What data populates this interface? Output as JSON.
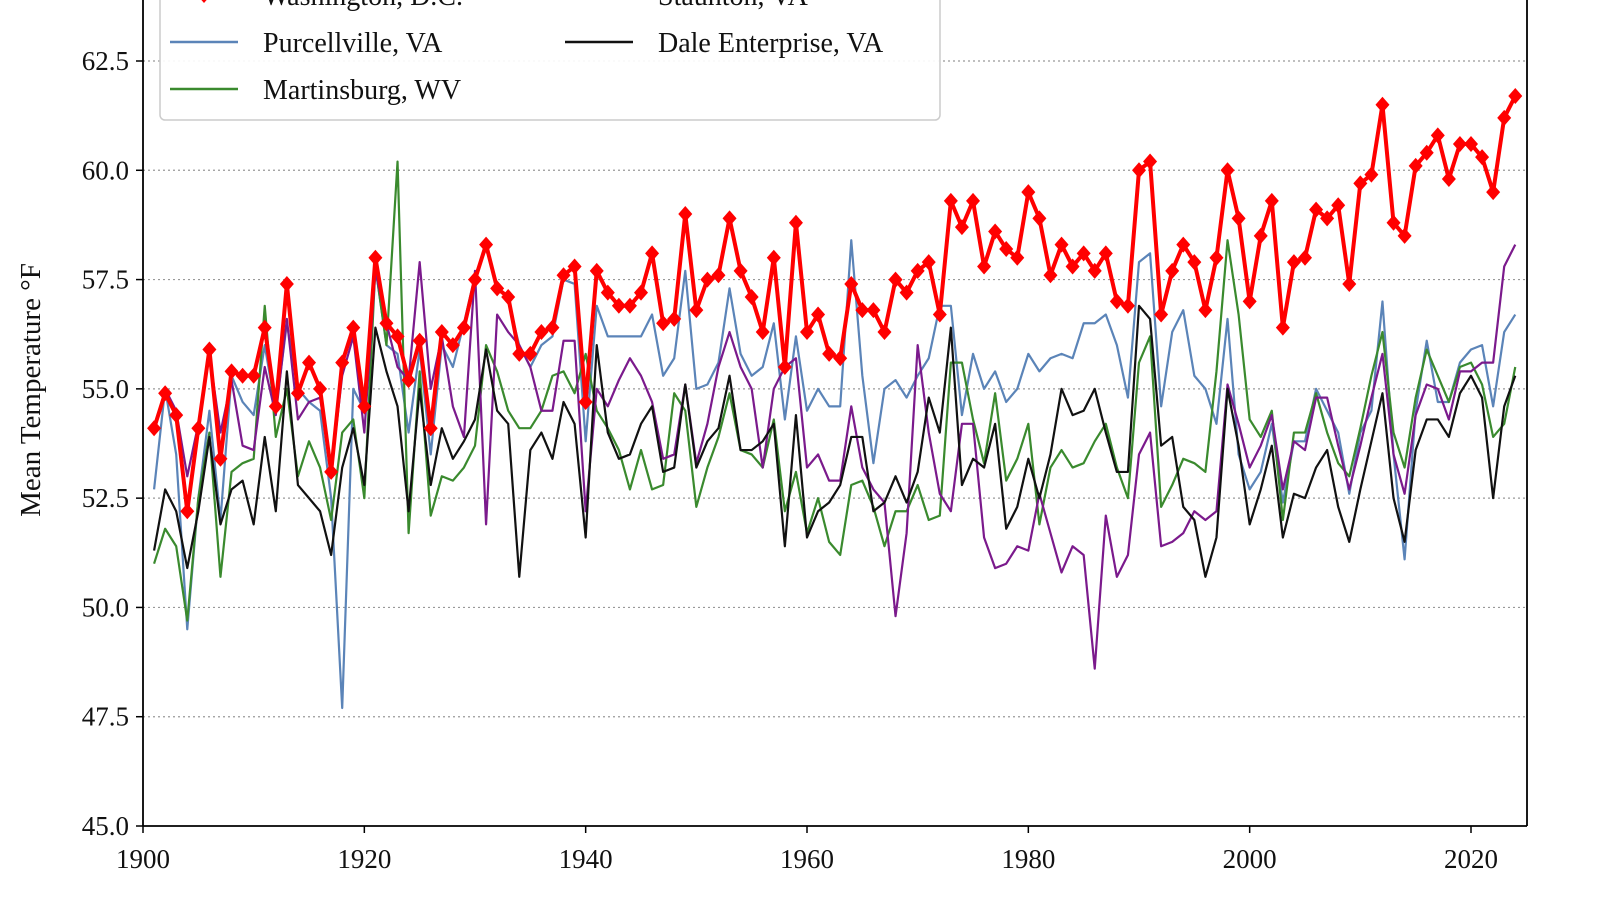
{
  "chart_data": {
    "type": "line",
    "title": "",
    "xlabel": "",
    "ylabel": "Mean Temperature °F",
    "xlim": [
      1900,
      2025
    ],
    "ylim": [
      45,
      65
    ],
    "x_ticks": [
      "1900",
      "1920",
      "1940",
      "1960",
      "1980",
      "2000",
      "2020"
    ],
    "y_ticks": [
      "45.0",
      "47.5",
      "50.0",
      "52.5",
      "55.0",
      "57.5",
      "60.0",
      "62.5"
    ],
    "grid": "horizontal dotted",
    "legend_placement": "top-left",
    "x": [
      1901,
      1902,
      1903,
      1904,
      1905,
      1906,
      1907,
      1908,
      1909,
      1910,
      1911,
      1912,
      1913,
      1914,
      1915,
      1916,
      1917,
      1918,
      1919,
      1920,
      1921,
      1922,
      1923,
      1924,
      1925,
      1926,
      1927,
      1928,
      1929,
      1930,
      1931,
      1932,
      1933,
      1934,
      1935,
      1936,
      1937,
      1938,
      1939,
      1940,
      1941,
      1942,
      1943,
      1944,
      1945,
      1946,
      1947,
      1948,
      1949,
      1950,
      1951,
      1952,
      1953,
      1954,
      1955,
      1956,
      1957,
      1958,
      1959,
      1960,
      1961,
      1962,
      1963,
      1964,
      1965,
      1966,
      1967,
      1968,
      1969,
      1970,
      1971,
      1972,
      1973,
      1974,
      1975,
      1976,
      1977,
      1978,
      1979,
      1980,
      1981,
      1982,
      1983,
      1984,
      1985,
      1986,
      1987,
      1988,
      1989,
      1990,
      1991,
      1992,
      1993,
      1994,
      1995,
      1996,
      1997,
      1998,
      1999,
      2000,
      2001,
      2002,
      2003,
      2004,
      2005,
      2006,
      2007,
      2008,
      2009,
      2010,
      2011,
      2012,
      2013,
      2014,
      2015,
      2016,
      2017,
      2018,
      2019,
      2020,
      2021,
      2022,
      2023,
      2024
    ],
    "series": [
      {
        "name": "Purcellville, VA",
        "color": "#5b84b8",
        "marker": "none",
        "values": [
          52.7,
          55.0,
          53.5,
          49.5,
          52.5,
          54.5,
          52.0,
          55.3,
          54.7,
          54.4,
          56.0,
          54.5,
          56.5,
          55.0,
          54.7,
          54.5,
          52.5,
          47.7,
          55.0,
          54.5,
          57.8,
          56.0,
          55.8,
          54.0,
          55.9,
          53.5,
          56.0,
          55.5,
          56.5,
          57.6,
          58.2,
          57.4,
          57.0,
          56.0,
          55.5,
          56.0,
          56.2,
          57.5,
          57.4,
          53.8,
          56.9,
          56.2,
          56.2,
          56.2,
          56.2,
          56.7,
          55.3,
          55.7,
          57.7,
          55.0,
          55.1,
          55.6,
          57.3,
          55.8,
          55.3,
          55.5,
          56.5,
          54.3,
          56.2,
          54.5,
          55.0,
          54.6,
          54.6,
          58.4,
          55.3,
          53.3,
          55.0,
          55.2,
          54.8,
          55.3,
          55.7,
          56.9,
          56.9,
          54.4,
          55.8,
          55.0,
          55.4,
          54.7,
          55.0,
          55.8,
          55.4,
          55.7,
          55.8,
          55.7,
          56.5,
          56.5,
          56.7,
          56.0,
          54.8,
          57.9,
          58.1,
          54.6,
          56.3,
          56.8,
          55.3,
          55.0,
          54.2,
          56.6,
          53.5,
          52.7,
          53.1,
          54.2,
          52.4,
          53.8,
          53.8,
          55.0,
          54.5,
          54.0,
          52.6,
          54.0,
          54.5,
          57.0,
          53.5,
          51.1,
          54.5,
          56.1,
          54.7,
          54.7,
          55.6,
          55.9,
          56.0,
          54.6,
          56.3,
          56.7
        ]
      },
      {
        "name": "Martinsburg, WV",
        "color": "#3a8a2e",
        "marker": "none",
        "values": [
          51.0,
          51.8,
          51.4,
          49.7,
          52.5,
          54.0,
          50.7,
          53.1,
          53.3,
          53.4,
          56.9,
          53.9,
          55.0,
          53.0,
          53.8,
          53.2,
          52.0,
          54.0,
          54.3,
          52.5,
          57.8,
          56.0,
          60.2,
          51.7,
          55.4,
          52.1,
          53.0,
          52.9,
          53.2,
          53.7,
          56.0,
          55.4,
          54.5,
          54.1,
          54.1,
          54.5,
          55.3,
          55.4,
          54.9,
          55.8,
          54.5,
          54.1,
          53.6,
          52.7,
          53.6,
          52.7,
          52.8,
          54.9,
          54.5,
          52.3,
          53.2,
          53.9,
          54.9,
          53.6,
          53.5,
          53.2,
          54.3,
          52.2,
          53.1,
          51.7,
          52.5,
          51.5,
          51.2,
          52.8,
          52.9,
          52.3,
          51.4,
          52.2,
          52.2,
          52.8,
          52.0,
          52.1,
          55.6,
          55.6,
          54.3,
          53.3,
          54.9,
          52.9,
          53.4,
          54.2,
          51.9,
          53.2,
          53.6,
          53.2,
          53.3,
          53.8,
          54.2,
          53.2,
          52.5,
          55.6,
          56.2,
          52.3,
          52.8,
          53.4,
          53.3,
          53.1,
          55.4,
          58.4,
          56.7,
          54.3,
          53.9,
          54.5,
          52.0,
          54.0,
          54.0,
          54.9,
          54.0,
          53.3,
          53.0,
          54.1,
          55.3,
          56.3,
          54.0,
          53.2,
          54.8,
          55.9,
          55.3,
          54.7,
          55.5,
          55.6,
          55.1,
          53.9,
          54.2,
          55.5
        ]
      },
      {
        "name": "Staunton, VA",
        "color": "#7b1a8c",
        "marker": "none",
        "values": [
          54.0,
          55.0,
          54.5,
          53.0,
          54.2,
          55.8,
          54.0,
          55.2,
          53.7,
          53.6,
          55.5,
          54.4,
          56.6,
          54.3,
          54.7,
          54.8,
          53.1,
          55.3,
          56.2,
          54.0,
          57.7,
          56.5,
          55.5,
          55.2,
          57.9,
          55.0,
          56.2,
          54.6,
          53.9,
          57.7,
          51.9,
          56.7,
          56.3,
          56.0,
          55.5,
          54.5,
          54.5,
          56.1,
          56.1,
          52.2,
          55.0,
          54.6,
          55.2,
          55.7,
          55.3,
          54.7,
          53.4,
          53.5,
          55.1,
          53.3,
          54.2,
          55.5,
          56.3,
          55.5,
          55.0,
          53.2,
          55.0,
          55.5,
          55.7,
          53.2,
          53.5,
          52.9,
          52.9,
          54.6,
          53.2,
          52.7,
          52.4,
          49.8,
          51.7,
          56.0,
          54.0,
          52.6,
          52.2,
          54.2,
          54.2,
          51.6,
          50.9,
          51.0,
          51.4,
          51.3,
          52.6,
          51.7,
          50.8,
          51.4,
          51.2,
          48.6,
          52.1,
          50.7,
          51.2,
          53.5,
          54.0,
          51.4,
          51.5,
          51.7,
          52.2,
          52.0,
          52.2,
          55.1,
          54.2,
          53.2,
          53.7,
          54.4,
          52.7,
          53.8,
          53.6,
          54.8,
          54.8,
          53.7,
          52.7,
          53.7,
          54.8,
          55.8,
          53.5,
          52.6,
          54.4,
          55.1,
          55.0,
          54.3,
          55.4,
          55.4,
          55.6,
          55.6,
          57.8,
          58.3
        ]
      },
      {
        "name": "Dale Enterprise, VA",
        "color": "#111111",
        "marker": "none",
        "values": [
          51.3,
          52.7,
          52.2,
          50.9,
          52.2,
          53.9,
          51.9,
          52.7,
          52.9,
          51.9,
          53.9,
          52.2,
          55.4,
          52.8,
          52.5,
          52.2,
          51.2,
          53.2,
          54.1,
          52.8,
          56.4,
          55.4,
          54.6,
          52.2,
          55.0,
          52.8,
          54.1,
          53.4,
          53.8,
          54.3,
          55.9,
          54.5,
          54.2,
          50.7,
          53.6,
          54.0,
          53.4,
          54.7,
          54.2,
          51.6,
          56.0,
          54.0,
          53.4,
          53.5,
          54.2,
          54.6,
          53.1,
          53.2,
          55.1,
          53.2,
          53.8,
          54.1,
          55.3,
          53.6,
          53.6,
          53.8,
          54.2,
          51.4,
          54.4,
          51.6,
          52.2,
          52.4,
          52.8,
          53.9,
          53.9,
          52.2,
          52.4,
          53.0,
          52.4,
          53.1,
          54.8,
          54.0,
          56.4,
          52.8,
          53.4,
          53.2,
          54.2,
          51.8,
          52.3,
          53.4,
          52.5,
          53.5,
          55.0,
          54.4,
          54.5,
          55.0,
          54.0,
          53.1,
          53.1,
          56.9,
          56.6,
          53.7,
          53.9,
          52.3,
          52.0,
          50.7,
          51.6,
          55.0,
          53.7,
          51.9,
          52.7,
          53.7,
          51.6,
          52.6,
          52.5,
          53.2,
          53.6,
          52.3,
          51.5,
          52.7,
          53.8,
          54.9,
          52.5,
          51.5,
          53.6,
          54.3,
          54.3,
          53.9,
          54.9,
          55.3,
          54.8,
          52.5,
          54.6,
          55.3
        ]
      },
      {
        "name": "Washington, D.C.",
        "color": "#ff0000",
        "marker": "diamond",
        "values": [
          54.1,
          54.9,
          54.4,
          52.2,
          54.1,
          55.9,
          53.4,
          55.4,
          55.3,
          55.3,
          56.4,
          54.6,
          57.4,
          54.9,
          55.6,
          55.0,
          53.1,
          55.6,
          56.4,
          54.6,
          58.0,
          56.5,
          56.2,
          55.2,
          56.1,
          54.1,
          56.3,
          56.0,
          56.4,
          57.5,
          58.3,
          57.3,
          57.1,
          55.8,
          55.8,
          56.3,
          56.4,
          57.6,
          57.8,
          54.7,
          57.7,
          57.2,
          56.9,
          56.9,
          57.2,
          58.1,
          56.5,
          56.6,
          59.0,
          56.8,
          57.5,
          57.6,
          58.9,
          57.7,
          57.1,
          56.3,
          58.0,
          55.5,
          58.8,
          56.3,
          56.7,
          55.8,
          55.7,
          57.4,
          56.8,
          56.8,
          56.3,
          57.5,
          57.2,
          57.7,
          57.9,
          56.7,
          59.3,
          58.7,
          59.3,
          57.8,
          58.6,
          58.2,
          58.0,
          59.5,
          58.9,
          57.6,
          58.3,
          57.8,
          58.1,
          57.7,
          58.1,
          57.0,
          56.9,
          60.0,
          60.2,
          56.7,
          57.7,
          58.3,
          57.9,
          56.8,
          58.0,
          60.0,
          58.9,
          57.0,
          58.5,
          59.3,
          56.4,
          57.9,
          58.0,
          59.1,
          58.9,
          59.2,
          57.4,
          59.7,
          59.9,
          61.5,
          58.8,
          58.5,
          60.1,
          60.4,
          60.8,
          59.8,
          60.6,
          60.6,
          60.3,
          59.5,
          61.2,
          61.7
        ]
      }
    ],
    "legend": {
      "entries": [
        {
          "label": "Washington, D.C.",
          "color": "#ff0000",
          "marker": "diamond"
        },
        {
          "label": "Staunton, VA",
          "color": "#7b1a8c",
          "marker": "none"
        },
        {
          "label": "Purcellville, VA",
          "color": "#5b84b8",
          "marker": "none"
        },
        {
          "label": "Dale Enterprise, VA",
          "color": "#111111",
          "marker": "none"
        },
        {
          "label": "Martinsburg, WV",
          "color": "#3a8a2e",
          "marker": "none"
        }
      ]
    }
  }
}
